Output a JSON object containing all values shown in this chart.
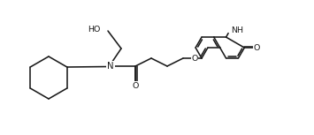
{
  "bg": "#ffffff",
  "lc": "#1a1a1a",
  "lw": 1.15,
  "fs": 6.8,
  "figw": 3.55,
  "figh": 1.53,
  "dpi": 100,
  "xlim": [
    0,
    35.5
  ],
  "ylim": [
    0,
    15.3
  ]
}
